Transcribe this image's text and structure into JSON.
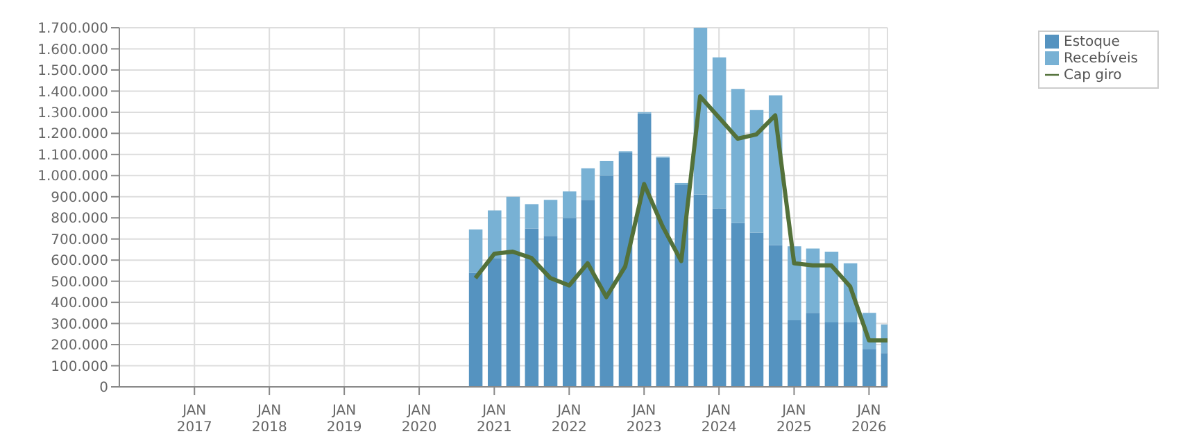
{
  "chart_data": {
    "type": "bar",
    "stacked": true,
    "x": [
      "2020-10-01",
      "2021-01-01",
      "2021-04-01",
      "2021-07-01",
      "2021-10-01",
      "2022-01-01",
      "2022-04-01",
      "2022-07-01",
      "2022-10-01",
      "2023-01-01",
      "2023-04-01",
      "2023-07-01",
      "2023-10-01",
      "2024-01-01",
      "2024-04-01",
      "2024-07-01",
      "2024-10-01",
      "2025-01-01",
      "2025-04-01",
      "2025-07-01",
      "2025-10-01",
      "2026-01-01",
      "2026-04-01"
    ],
    "series": [
      {
        "name": "Estoque",
        "color": "#5593c0",
        "values": [
          540000,
          610000,
          630000,
          750000,
          715000,
          800000,
          885000,
          1000000,
          1110000,
          1295000,
          1085000,
          955000,
          910000,
          845000,
          775000,
          730000,
          670000,
          315000,
          350000,
          305000,
          305000,
          180000,
          160000
        ]
      },
      {
        "name": "Recebíveis",
        "color": "#78b1d4",
        "values": [
          205000,
          225000,
          270000,
          115000,
          170000,
          125000,
          150000,
          70000,
          5000,
          5000,
          5000,
          10000,
          790000,
          715000,
          635000,
          580000,
          710000,
          350000,
          305000,
          335000,
          280000,
          170000,
          135000
        ]
      },
      {
        "name": "Cap giro",
        "type": "line",
        "color": "#53713a",
        "values": [
          515000,
          630000,
          640000,
          610000,
          515000,
          480000,
          585000,
          425000,
          570000,
          960000,
          760000,
          595000,
          1375000,
          1275000,
          1175000,
          1195000,
          1285000,
          585000,
          575000,
          575000,
          475000,
          220000,
          220000
        ]
      }
    ],
    "xlim": [
      "2016-01-01",
      "2026-04-01"
    ],
    "xticks": [
      {
        "value": "2017-01-01",
        "label": "JAN\n2017"
      },
      {
        "value": "2018-01-01",
        "label": "JAN\n2018"
      },
      {
        "value": "2019-01-01",
        "label": "JAN\n2019"
      },
      {
        "value": "2020-01-01",
        "label": "JAN\n2020"
      },
      {
        "value": "2021-01-01",
        "label": "JAN\n2021"
      },
      {
        "value": "2022-01-01",
        "label": "JAN\n2022"
      },
      {
        "value": "2023-01-01",
        "label": "JAN\n2023"
      },
      {
        "value": "2024-01-01",
        "label": "JAN\n2024"
      },
      {
        "value": "2025-01-01",
        "label": "JAN\n2025"
      },
      {
        "value": "2026-01-01",
        "label": "JAN\n2026"
      }
    ],
    "ylim": [
      0,
      1700000
    ],
    "yticks": [
      0,
      {
        "value": 100000,
        "label": "100.000"
      },
      {
        "value": 200000,
        "label": "200.000"
      },
      {
        "value": 300000,
        "label": "300.000"
      },
      {
        "value": 400000,
        "label": "400.000"
      },
      {
        "value": 500000,
        "label": "500.000"
      },
      {
        "value": 600000,
        "label": "600.000"
      },
      {
        "value": 700000,
        "label": "700.000"
      },
      {
        "value": 800000,
        "label": "800.000"
      },
      {
        "value": 900000,
        "label": "900.000"
      },
      {
        "value": 1000000,
        "label": "1.000.000"
      },
      {
        "value": 1100000,
        "label": "1.100.000"
      },
      {
        "value": 1200000,
        "label": "1.200.000"
      },
      {
        "value": 1300000,
        "label": "1.300.000"
      },
      {
        "value": 1400000,
        "label": "1.400.000"
      },
      {
        "value": 1500000,
        "label": "1.500.000"
      },
      {
        "value": 1600000,
        "label": "1.600.000"
      },
      {
        "value": 1700000,
        "label": "1.700.000"
      }
    ],
    "grid": true,
    "legend": "top right"
  }
}
